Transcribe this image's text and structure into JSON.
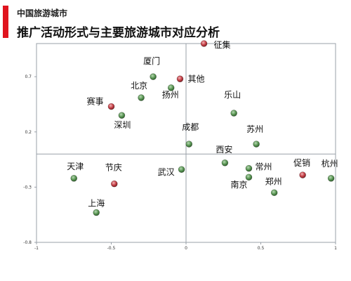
{
  "header": {
    "eyebrow": "中国旅游城市",
    "title": "推广活动形式与主要旅游城市对应分析"
  },
  "colors": {
    "accent": "#e0141e",
    "city_point": "#4f8a4a",
    "activity_point": "#c8434a",
    "axis": "#9aa0a8"
  },
  "chart_data": {
    "type": "scatter",
    "title": "",
    "xlabel": "",
    "ylabel": "",
    "xlim": [
      -1,
      1
    ],
    "ylim": [
      -0.8,
      1.0
    ],
    "grid": false,
    "x_ticks": [
      "-1",
      "-0.5",
      "0",
      "0.5",
      "1"
    ],
    "y_ticks": [
      "0.7",
      "0.2",
      "-0.3",
      "-0.8"
    ],
    "x_tick_values": [
      -1,
      -0.5,
      0,
      0.5,
      1
    ],
    "y_tick_values": [
      0.7,
      0.2,
      -0.3,
      -0.8
    ],
    "series": [
      {
        "group": "city",
        "points": [
          {
            "label": "厦门",
            "x": -0.22,
            "y": 0.7
          },
          {
            "label": "北京",
            "x": -0.3,
            "y": 0.51
          },
          {
            "label": "扬州",
            "x": -0.1,
            "y": 0.6
          },
          {
            "label": "深圳",
            "x": -0.43,
            "y": 0.35
          },
          {
            "label": "成都",
            "x": 0.02,
            "y": 0.09
          },
          {
            "label": "乐山",
            "x": 0.32,
            "y": 0.37
          },
          {
            "label": "苏州",
            "x": 0.47,
            "y": 0.09
          },
          {
            "label": "西安",
            "x": 0.26,
            "y": -0.08
          },
          {
            "label": "常州",
            "x": 0.42,
            "y": -0.13
          },
          {
            "label": "南京",
            "x": 0.42,
            "y": -0.21
          },
          {
            "label": "郑州",
            "x": 0.59,
            "y": -0.35
          },
          {
            "label": "杭州",
            "x": 0.97,
            "y": -0.22
          },
          {
            "label": "武汉",
            "x": -0.03,
            "y": -0.14
          },
          {
            "label": "天津",
            "x": -0.75,
            "y": -0.22
          },
          {
            "label": "上海",
            "x": -0.6,
            "y": -0.53
          }
        ]
      },
      {
        "group": "activity",
        "points": [
          {
            "label": "征集",
            "x": 0.12,
            "y": 1.0
          },
          {
            "label": "其他",
            "x": -0.04,
            "y": 0.68
          },
          {
            "label": "赛事",
            "x": -0.5,
            "y": 0.43
          },
          {
            "label": "节庆",
            "x": -0.48,
            "y": -0.27
          },
          {
            "label": "促销",
            "x": 0.78,
            "y": -0.19
          }
        ]
      }
    ]
  }
}
